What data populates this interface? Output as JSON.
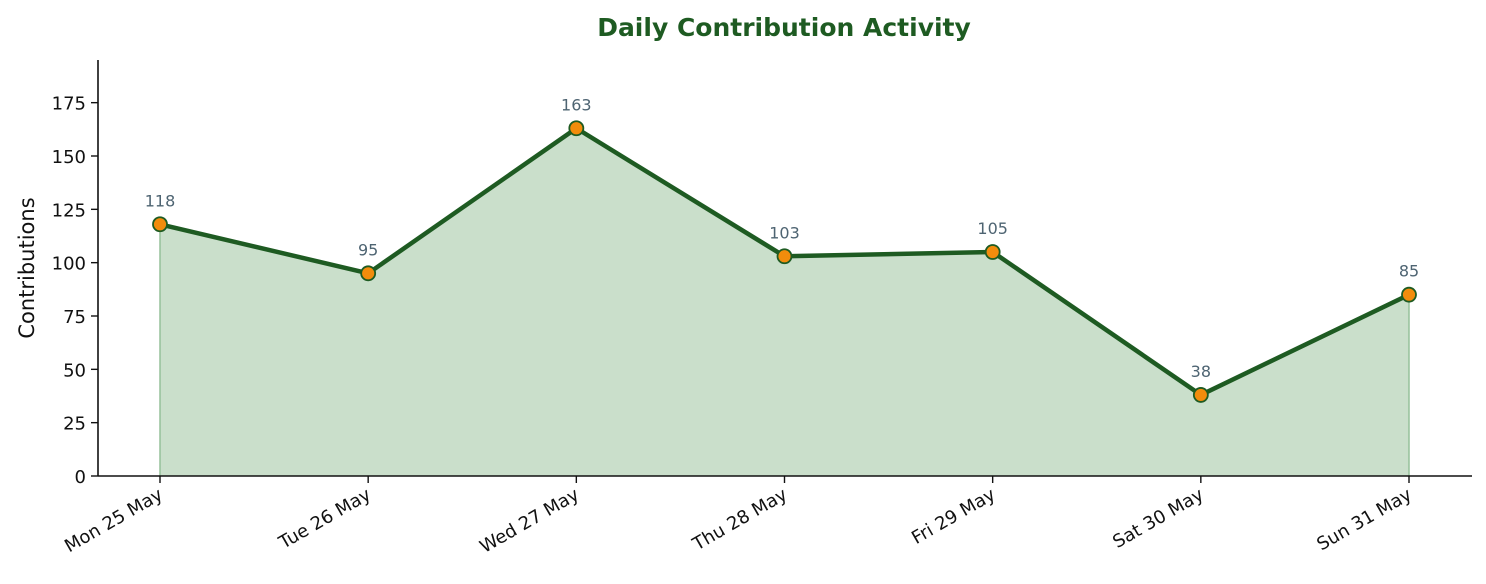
{
  "colors": {
    "line": "#1e5b22",
    "area_fill": "#cadfcb",
    "area_edge": "#95c19a",
    "marker_fill": "#f28c0c",
    "marker_edge": "#1e5b22",
    "data_label": "#4e6472",
    "title": "#1e5b22",
    "axis": "#111111"
  },
  "chart_data": {
    "type": "area",
    "title": "Daily Contribution Activity",
    "xlabel": "",
    "ylabel": "Contributions",
    "categories": [
      "Mon 25 May",
      "Tue 26 May",
      "Wed 27 May",
      "Thu 28 May",
      "Fri 29 May",
      "Sat 30 May",
      "Sun 31 May"
    ],
    "series": [
      {
        "values": [
          118,
          95,
          163,
          103,
          105,
          38,
          85
        ]
      }
    ],
    "data_labels": [
      "118",
      "95",
      "163",
      "103",
      "105",
      "38",
      "85"
    ],
    "ylim": [
      0,
      195
    ],
    "yticks": [
      0,
      25,
      50,
      75,
      100,
      125,
      150,
      175
    ],
    "grid": false,
    "legend": "none",
    "markers": "circle",
    "x_tick_rotation_deg": 30
  }
}
